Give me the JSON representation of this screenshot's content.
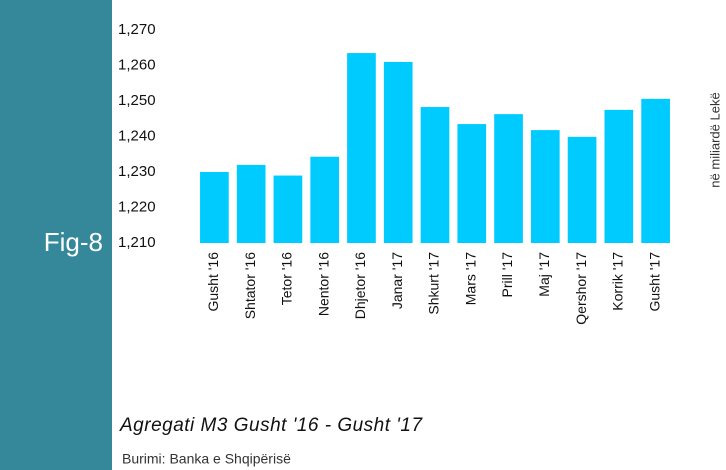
{
  "chart_data": {
    "type": "bar",
    "figure_label": "Fig-8",
    "title": "Agregati M3 Gusht '16 - Gusht '17",
    "source": "Burimi: Banka e Shqipërisë",
    "y_label": "në miliardë Lekë",
    "categories": [
      "Gusht '16",
      "Shtator '16",
      "Tetor '16",
      "Nentor '16",
      "Dhjetor '16",
      "Janar '17",
      "Shkurt '17",
      "Mars '17",
      "Prill '17",
      "Maj '17",
      "Qershor '17",
      "Korrik '17",
      "Gusht '17"
    ],
    "values": [
      1230,
      1232,
      1229,
      1234.3,
      1263.5,
      1261,
      1248.3,
      1243.5,
      1246.3,
      1241.8,
      1239.9,
      1247.5,
      1250.6
    ],
    "color": "#00cbff",
    "ylim": [
      1210,
      1270
    ],
    "yticks": [
      {
        "value": 1210,
        "label": "1,210"
      },
      {
        "value": 1220,
        "label": "1,220"
      },
      {
        "value": 1230,
        "label": "1,230"
      },
      {
        "value": 1240,
        "label": "1,240"
      },
      {
        "value": 1250,
        "label": "1,250"
      },
      {
        "value": 1260,
        "label": "1,260"
      },
      {
        "value": 1270,
        "label": "1,270"
      }
    ],
    "grid": false
  }
}
